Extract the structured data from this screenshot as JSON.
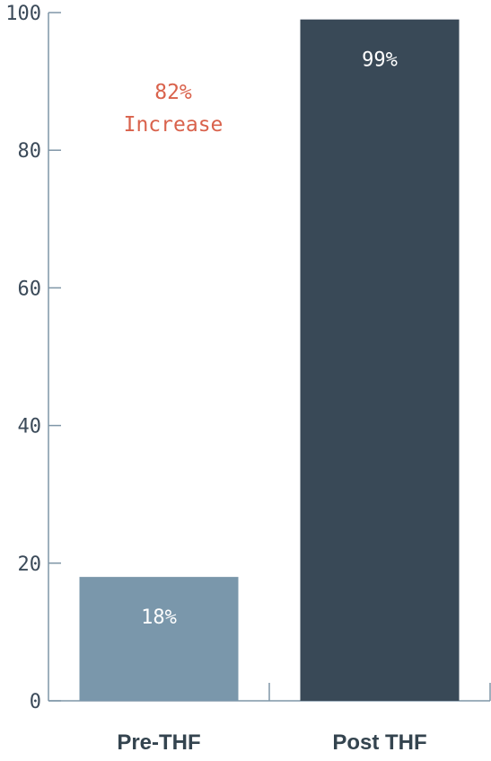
{
  "chart_data": {
    "type": "bar",
    "categories": [
      "Pre-THF",
      "Post THF"
    ],
    "values": [
      18,
      99
    ],
    "value_labels": [
      "18%",
      "99%"
    ],
    "bar_colors": [
      "#7a97ab",
      "#394957"
    ],
    "ylim": [
      0,
      100
    ],
    "yticks": [
      0,
      20,
      40,
      60,
      80,
      100
    ],
    "grid": false,
    "title": "",
    "xlabel": "",
    "ylabel": "",
    "annotation": {
      "line1": "82%",
      "line2": "Increase",
      "color": "#d9624c"
    }
  }
}
